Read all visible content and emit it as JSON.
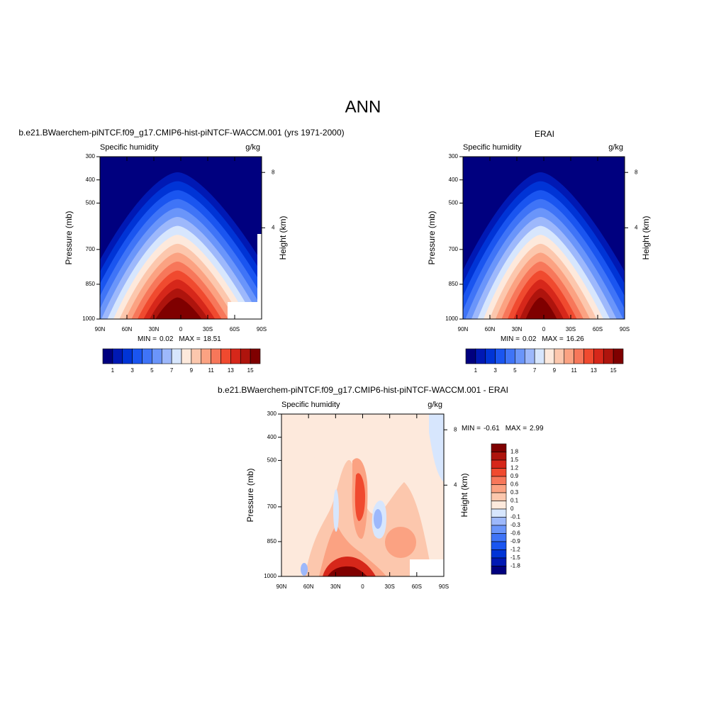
{
  "title": "ANN",
  "chart_data": [
    {
      "type": "contour",
      "title": "b.e21.BWaerchem-piNTCF.f09_g17.CMIP6-hist-piNTCF-WACCM.001 (yrs 1971-2000)",
      "subtitle_left": "Specific humidity",
      "subtitle_right": "g/kg",
      "ylabel": "Pressure (mb)",
      "y2label": "Height (km)",
      "ylim": [
        1000,
        300
      ],
      "yticks": [
        300,
        400,
        500,
        700,
        850,
        1000
      ],
      "y2ticks": [
        8,
        4
      ],
      "xlim": [
        90,
        -90
      ],
      "xticks": [
        {
          "value": 90,
          "label": "90N"
        },
        {
          "value": 60,
          "label": "60N"
        },
        {
          "value": 30,
          "label": "30N"
        },
        0,
        {
          "value": -30,
          "label": "30S"
        },
        {
          "value": -60,
          "label": "60S"
        },
        {
          "value": -90,
          "label": "90S"
        }
      ],
      "min_label": "MIN =",
      "min": 0.02,
      "max_label": "MAX =",
      "max": 18.51,
      "colorbar": {
        "orientation": "horizontal",
        "levels": [
          1,
          3,
          5,
          7,
          9,
          11,
          13,
          15
        ],
        "colors": [
          "#00007f",
          "#0019b4",
          "#0034d6",
          "#1a55f0",
          "#3f74f7",
          "#6a95fa",
          "#9db8fb",
          "#d7e6fd",
          "#fde9dc",
          "#fcc7ad",
          "#fba282",
          "#f7775a",
          "#f04a2f",
          "#d6271a",
          "#ae140d",
          "#7f0000"
        ]
      }
    },
    {
      "type": "contour",
      "title": "ERAI",
      "subtitle_left": "Specific humidity",
      "subtitle_right": "g/kg",
      "ylabel": "Pressure (mb)",
      "y2label": "Height (km)",
      "ylim": [
        1000,
        300
      ],
      "yticks": [
        300,
        400,
        500,
        700,
        850,
        1000
      ],
      "y2ticks": [
        8,
        4
      ],
      "xlim": [
        90,
        -90
      ],
      "xticks": [
        {
          "value": 90,
          "label": "90N"
        },
        {
          "value": 60,
          "label": "60N"
        },
        {
          "value": 30,
          "label": "30N"
        },
        0,
        {
          "value": -30,
          "label": "30S"
        },
        {
          "value": -60,
          "label": "60S"
        },
        {
          "value": -90,
          "label": "90S"
        }
      ],
      "min_label": "MIN =",
      "min": 0.02,
      "max_label": "MAX =",
      "max": 16.26,
      "colorbar": {
        "orientation": "horizontal",
        "levels": [
          1,
          3,
          5,
          7,
          9,
          11,
          13,
          15
        ],
        "colors": [
          "#00007f",
          "#0019b4",
          "#0034d6",
          "#1a55f0",
          "#3f74f7",
          "#6a95fa",
          "#9db8fb",
          "#d7e6fd",
          "#fde9dc",
          "#fcc7ad",
          "#fba282",
          "#f7775a",
          "#f04a2f",
          "#d6271a",
          "#ae140d",
          "#7f0000"
        ]
      }
    },
    {
      "type": "contour",
      "title": "b.e21.BWaerchem-piNTCF.f09_g17.CMIP6-hist-piNTCF-WACCM.001 - ERAI",
      "subtitle_left": "Specific humidity",
      "subtitle_right": "g/kg",
      "ylabel": "Pressure (mb)",
      "y2label": "Height (km)",
      "ylim": [
        1000,
        300
      ],
      "yticks": [
        300,
        400,
        500,
        700,
        850,
        1000
      ],
      "y2ticks": [
        8,
        4
      ],
      "xlim": [
        90,
        -90
      ],
      "xticks": [
        {
          "value": 90,
          "label": "90N"
        },
        {
          "value": 60,
          "label": "60N"
        },
        {
          "value": 30,
          "label": "30N"
        },
        0,
        {
          "value": -30,
          "label": "30S"
        },
        {
          "value": -60,
          "label": "60S"
        },
        {
          "value": -90,
          "label": "90S"
        }
      ],
      "min_label": "MIN =",
      "min": -0.61,
      "max_label": "MAX =",
      "max": 2.99,
      "colorbar": {
        "orientation": "vertical",
        "levels": [
          1.8,
          1.5,
          1.2,
          0.9,
          0.6,
          0.3,
          0.1,
          0,
          -0.1,
          -0.3,
          -0.6,
          -0.9,
          -1.2,
          -1.5,
          -1.8
        ],
        "colors": [
          "#7f0000",
          "#ae140d",
          "#d6271a",
          "#f04a2f",
          "#f7775a",
          "#fba282",
          "#fcc7ad",
          "#fde9dc",
          "#d7e6fd",
          "#9db8fb",
          "#6a95fa",
          "#3f74f7",
          "#1a55f0",
          "#0034d6",
          "#0019b4",
          "#00007f"
        ]
      }
    }
  ]
}
